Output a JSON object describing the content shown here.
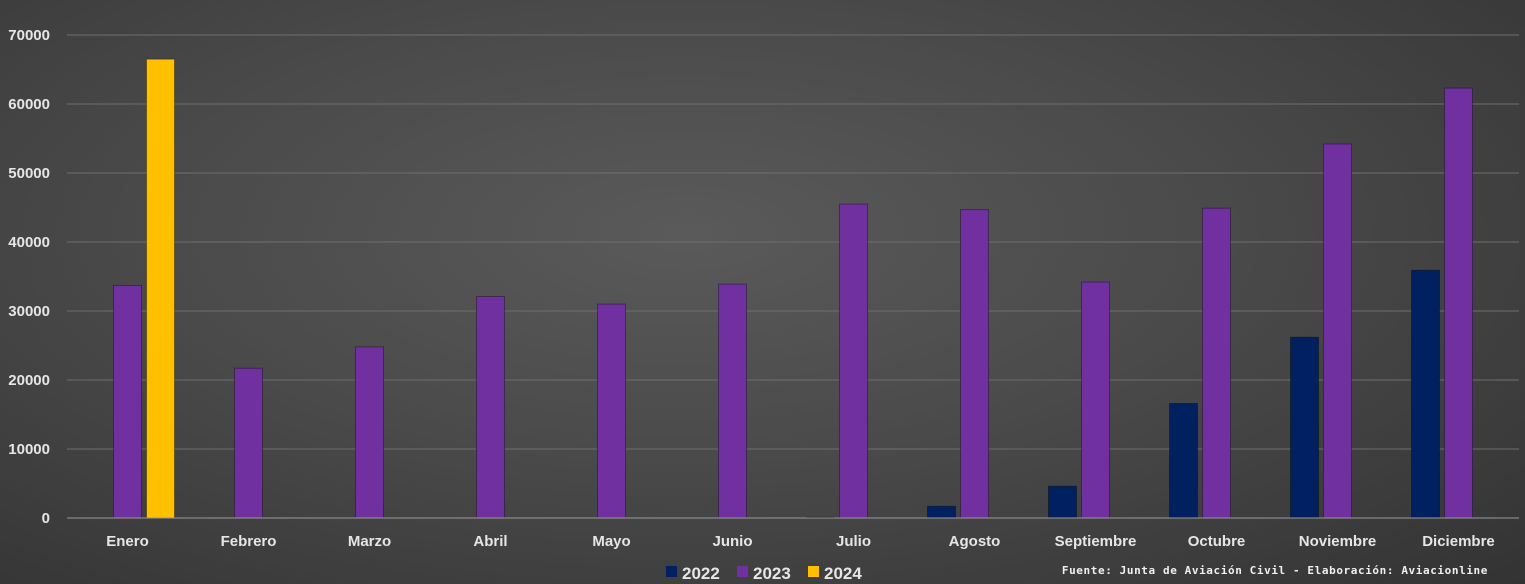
{
  "chart_data": {
    "type": "bar",
    "categories": [
      "Enero",
      "Febrero",
      "Marzo",
      "Abril",
      "Mayo",
      "Junio",
      "Julio",
      "Agosto",
      "Septiembre",
      "Octubre",
      "Noviembre",
      "Diciembre"
    ],
    "series": [
      {
        "name": "2022",
        "color": "#002060",
        "values": [
          null,
          null,
          null,
          null,
          null,
          null,
          100,
          1700,
          4600,
          16600,
          26200,
          35900
        ]
      },
      {
        "name": "2023",
        "color": "#7030A0",
        "values": [
          33700,
          21700,
          24800,
          32100,
          31000,
          33900,
          45500,
          44700,
          34200,
          44900,
          54200,
          62300
        ]
      },
      {
        "name": "2024",
        "color": "#FFC000",
        "values": [
          66500,
          null,
          null,
          null,
          null,
          null,
          null,
          null,
          null,
          null,
          null,
          null
        ]
      }
    ],
    "ylim": [
      0,
      70000
    ],
    "yticks": [
      "0",
      "10000",
      "20000",
      "30000",
      "40000",
      "50000",
      "60000",
      "70000"
    ],
    "grid": true,
    "legend_position": "bottom-center",
    "source_note": "Fuente: Junta de Aviación Civil - Elaboración: Aviacionline"
  }
}
